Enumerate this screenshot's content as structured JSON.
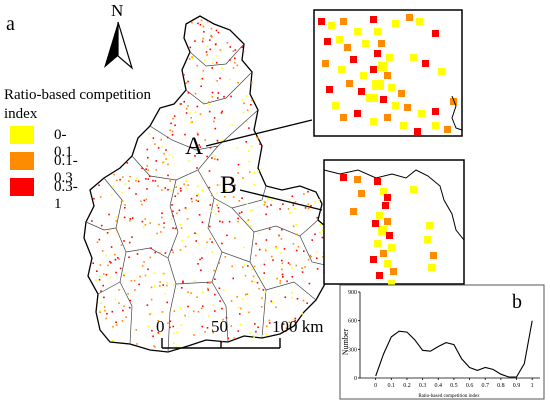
{
  "panel_a_label": "a",
  "panel_b_label": "b",
  "north_label": "N",
  "legend": {
    "title": "Ratio-based competition index",
    "items": [
      {
        "label": "0-0.1",
        "color": "#ffff00"
      },
      {
        "label": "0.1-0.3",
        "color": "#ff8c00"
      },
      {
        "label": "0.3-1",
        "color": "#ff0000"
      }
    ]
  },
  "site_labels": {
    "a": "A",
    "b": "B"
  },
  "scale_bar": {
    "zero": "0",
    "mid": "50",
    "end": "100 km"
  },
  "colors": {
    "outline": "#000000",
    "yellow": "#ffff00",
    "orange": "#ff8c00",
    "red": "#ff0000"
  },
  "chart_data": {
    "type": "line",
    "xlabel": "Ratio-based competition index",
    "ylabel": "Number",
    "x_ticks": [
      "0",
      "0.1",
      "0.2",
      "0.3",
      "0.4",
      "0.5",
      "0.6",
      "0.7",
      "0.8",
      "0.9",
      "1"
    ],
    "y_ticks": [
      "0",
      "300",
      "600",
      "900"
    ],
    "xlim": [
      -0.1,
      1.05
    ],
    "ylim": [
      0,
      900
    ],
    "series": [
      {
        "x": [
          0.0,
          0.05,
          0.1,
          0.15,
          0.2,
          0.25,
          0.3,
          0.35,
          0.4,
          0.45,
          0.5,
          0.55,
          0.6,
          0.65,
          0.7,
          0.75,
          0.8,
          0.85,
          0.9,
          0.95,
          1.0
        ],
        "values": [
          20,
          250,
          430,
          490,
          480,
          400,
          290,
          280,
          330,
          370,
          350,
          200,
          110,
          80,
          110,
          90,
          40,
          10,
          10,
          150,
          600
        ]
      }
    ]
  }
}
